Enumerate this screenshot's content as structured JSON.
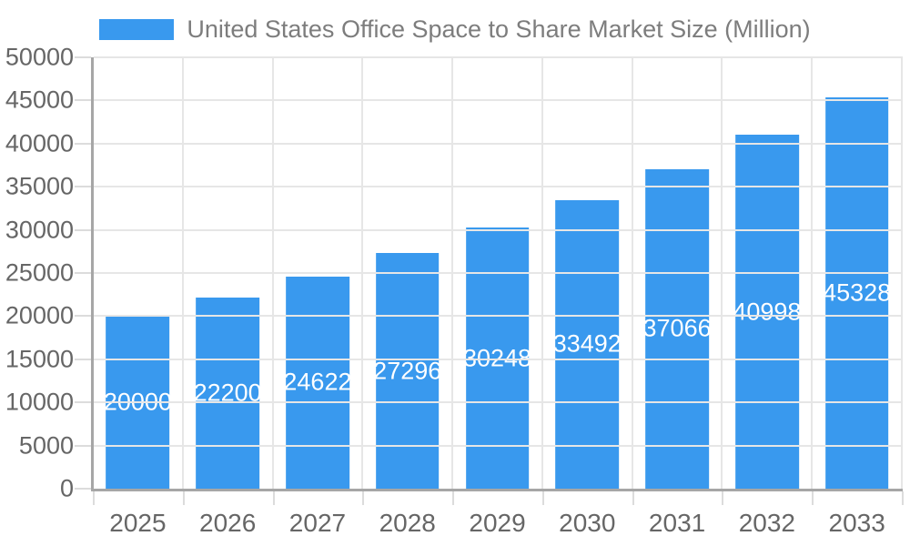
{
  "chart_data": {
    "type": "bar",
    "title": "United States Office Space to Share Market Size (Million)",
    "legend": {
      "position": "top-center",
      "entries": [
        "United States Office Space to Share Market Size (Million)"
      ]
    },
    "categories": [
      "2025",
      "2026",
      "2027",
      "2028",
      "2029",
      "2030",
      "2031",
      "2032",
      "2033"
    ],
    "values": [
      20000,
      22200,
      24622,
      27296,
      30248,
      33492,
      37066,
      40998,
      45328
    ],
    "value_labels": [
      "20000",
      "22200",
      "24622",
      "27296",
      "30248",
      "33492",
      "37066",
      "40998",
      "45328"
    ],
    "xlabel": "",
    "ylabel": "",
    "ylim": [
      0,
      50000
    ],
    "yticks": [
      0,
      5000,
      10000,
      15000,
      20000,
      25000,
      30000,
      35000,
      40000,
      45000,
      50000
    ],
    "grid": "both",
    "colors": {
      "bar": "#3999ee",
      "grid": "#e6e6e6",
      "axis_line": "#a6a6a6",
      "axis_text": "#666666",
      "title_text": "#7d7d7d",
      "value_text": "#ffffff"
    }
  }
}
